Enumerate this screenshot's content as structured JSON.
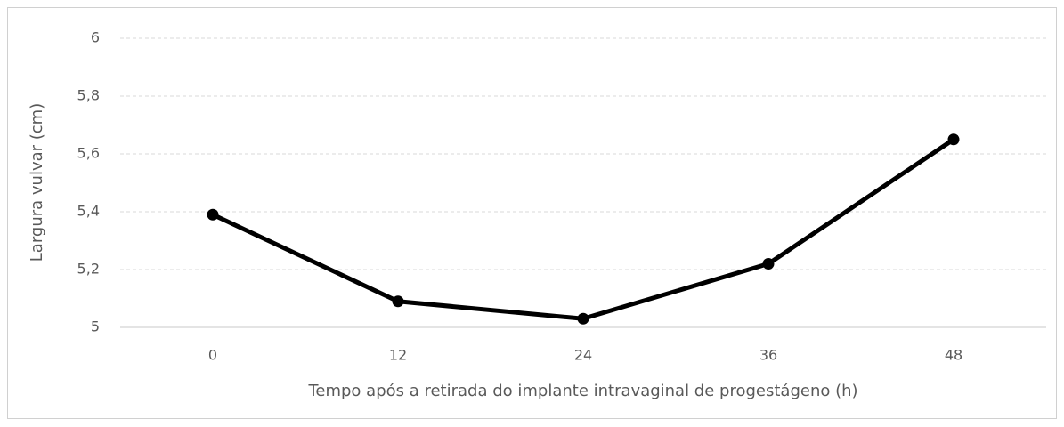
{
  "chart_data": {
    "type": "line",
    "x_label": "Tempo após a retirada do implante intravaginal de progestágeno (h)",
    "y_label": "Largura vulvar (cm)",
    "categories": [
      "0",
      "12",
      "24",
      "36",
      "48"
    ],
    "values": [
      5.39,
      5.09,
      5.03,
      5.22,
      5.65
    ],
    "color": "#000000",
    "ylim": [
      5,
      6
    ],
    "yticks": [
      5,
      {
        "value": 5.2,
        "label": "5,2"
      },
      {
        "value": 5.4,
        "label": "5,4"
      },
      {
        "value": 5.6,
        "label": "5,6"
      },
      {
        "value": 5.8,
        "label": "5,8"
      },
      6
    ],
    "grid": true
  }
}
